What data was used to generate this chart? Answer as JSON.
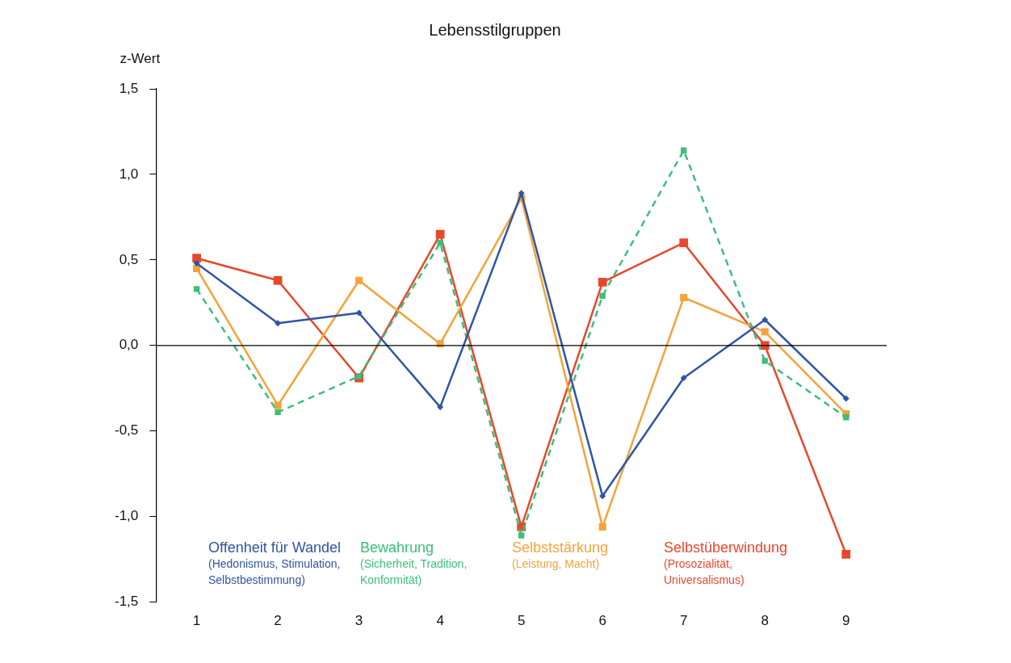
{
  "chart_data": {
    "type": "line",
    "title": "Lebensstilgruppen",
    "ylabel": "z-Wert",
    "categories": [
      "1",
      "2",
      "3",
      "4",
      "5",
      "6",
      "7",
      "8",
      "9"
    ],
    "ylim": [
      -1.5,
      1.5
    ],
    "yticks": [
      {
        "value": -1.5,
        "label": "-1,5"
      },
      {
        "value": -1,
        "label": "-1,0"
      },
      {
        "value": -0.5,
        "label": "-0,5"
      },
      {
        "value": 0,
        "label": "0,0"
      },
      {
        "value": 0.5,
        "label": "0,5"
      },
      {
        "value": 1,
        "label": "1,0"
      },
      {
        "value": 1.5,
        "label": "1,5"
      }
    ],
    "grid": false,
    "legend": "bottom left",
    "ref_lines": [
      {
        "axis": "y",
        "value": 0,
        "color": "#000000",
        "line_style": "solid"
      }
    ],
    "series": [
      {
        "name": "Offenheit für Wandel (Hedonismus, Stimulation, Selbstbestimmung)",
        "color": "#2f55a4",
        "marker": "diamond",
        "line_style": "solid",
        "values": [
          0.48,
          0.13,
          0.19,
          -0.36,
          0.89,
          -0.88,
          -0.19,
          0.15,
          -0.31
        ]
      },
      {
        "name": "Bewahrung (Sicherheit, Tradition, Konformität)",
        "color": "#3cbf7a",
        "marker": "square",
        "line_style": "dashed",
        "values": [
          0.33,
          -0.39,
          -0.18,
          0.6,
          -1.11,
          0.29,
          1.14,
          -0.09,
          -0.42
        ]
      },
      {
        "name": "Selbststärkung (Leistung, Macht)",
        "color": "#f5a33a",
        "marker": "square",
        "line_style": "solid",
        "values": [
          0.45,
          -0.35,
          0.38,
          0.01,
          0.86,
          -1.06,
          0.28,
          0.08,
          -0.4
        ]
      },
      {
        "name": "Selbstüberwindung (Prosozialität, Universalismus)",
        "color": "#e8472b",
        "marker": "square",
        "line_style": "solid",
        "values": [
          0.51,
          0.38,
          -0.19,
          0.65,
          -1.06,
          0.37,
          0.6,
          0,
          -1.22
        ]
      }
    ]
  }
}
